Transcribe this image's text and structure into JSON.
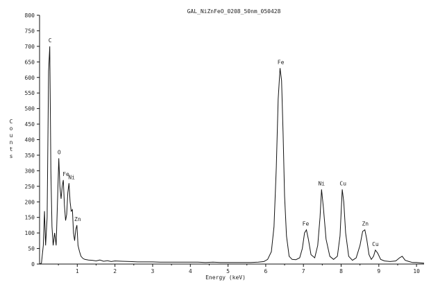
{
  "chart_data": {
    "type": "line",
    "title": "GAL_NiZnFeO_0208_50nm_050428",
    "xlabel": "Energy (keV)",
    "ylabel": "Counts",
    "xlim": [
      0,
      10.2
    ],
    "ylim": [
      0,
      800
    ],
    "xticks": [
      "1",
      "2",
      "3",
      "4",
      "5",
      "6",
      "7",
      "8",
      "9",
      "10"
    ],
    "yticks": [
      "0",
      "50",
      "100",
      "150",
      "200",
      "250",
      "300",
      "350",
      "400",
      "450",
      "500",
      "550",
      "600",
      "650",
      "700",
      "750",
      "800"
    ],
    "grid": false,
    "peaks": [
      {
        "label": "C",
        "x": 0.28,
        "y": 700
      },
      {
        "label": "O",
        "x": 0.52,
        "y": 340
      },
      {
        "label": "Fe",
        "x": 0.7,
        "y": 270
      },
      {
        "label": "Ni",
        "x": 0.85,
        "y": 260
      },
      {
        "label": "Zn",
        "x": 1.01,
        "y": 125
      },
      {
        "label": "Fe",
        "x": 6.4,
        "y": 630
      },
      {
        "label": "Fe",
        "x": 7.06,
        "y": 110
      },
      {
        "label": "Ni",
        "x": 7.48,
        "y": 240
      },
      {
        "label": "Cu",
        "x": 8.05,
        "y": 240
      },
      {
        "label": "Zn",
        "x": 8.64,
        "y": 110
      },
      {
        "label": "Cu",
        "x": 8.91,
        "y": 45
      }
    ],
    "series": [
      {
        "x": [
          0.0,
          0.05,
          0.1,
          0.13,
          0.16,
          0.2,
          0.24,
          0.27,
          0.3,
          0.33,
          0.36,
          0.4,
          0.44,
          0.48,
          0.51,
          0.54,
          0.57,
          0.6,
          0.63,
          0.66,
          0.69,
          0.72,
          0.75,
          0.78,
          0.81,
          0.84,
          0.87,
          0.9,
          0.93,
          0.96,
          0.99,
          1.02,
          1.06,
          1.1,
          1.15,
          1.2,
          1.3,
          1.4,
          1.5,
          1.6,
          1.7,
          1.8,
          1.9,
          2.0,
          2.2,
          2.4,
          2.6,
          2.8,
          3.0,
          3.2,
          3.4,
          3.6,
          3.8,
          4.0,
          4.2,
          4.4,
          4.6,
          4.8,
          5.0,
          5.2,
          5.4,
          5.6,
          5.8,
          5.95,
          6.05,
          6.15,
          6.22,
          6.28,
          6.33,
          6.38,
          6.42,
          6.46,
          6.5,
          6.55,
          6.62,
          6.7,
          6.8,
          6.9,
          6.97,
          7.03,
          7.08,
          7.13,
          7.2,
          7.3,
          7.38,
          7.44,
          7.48,
          7.53,
          7.6,
          7.7,
          7.8,
          7.9,
          7.97,
          8.03,
          8.07,
          8.12,
          8.2,
          8.3,
          8.4,
          8.5,
          8.57,
          8.63,
          8.68,
          8.74,
          8.8,
          8.86,
          8.91,
          8.97,
          9.05,
          9.15,
          9.3,
          9.45,
          9.55,
          9.62,
          9.7,
          9.8,
          9.9,
          10.0,
          10.1,
          10.2
        ],
        "y": [
          0,
          3,
          60,
          170,
          60,
          150,
          620,
          700,
          300,
          120,
          60,
          100,
          60,
          220,
          340,
          250,
          210,
          250,
          270,
          190,
          140,
          160,
          230,
          260,
          200,
          170,
          175,
          100,
          75,
          110,
          125,
          60,
          40,
          25,
          18,
          15,
          13,
          12,
          10,
          13,
          9,
          11,
          8,
          10,
          9,
          8,
          7,
          7,
          7,
          6,
          6,
          6,
          6,
          6,
          6,
          5,
          6,
          5,
          5,
          5,
          5,
          5,
          6,
          8,
          15,
          40,
          120,
          310,
          530,
          630,
          590,
          420,
          220,
          90,
          25,
          15,
          14,
          20,
          50,
          100,
          110,
          80,
          30,
          20,
          60,
          150,
          240,
          180,
          80,
          25,
          15,
          25,
          90,
          240,
          200,
          100,
          25,
          12,
          20,
          60,
          105,
          110,
          80,
          30,
          15,
          25,
          45,
          35,
          15,
          10,
          8,
          10,
          20,
          25,
          12,
          8,
          5,
          5,
          4,
          3
        ]
      }
    ]
  }
}
